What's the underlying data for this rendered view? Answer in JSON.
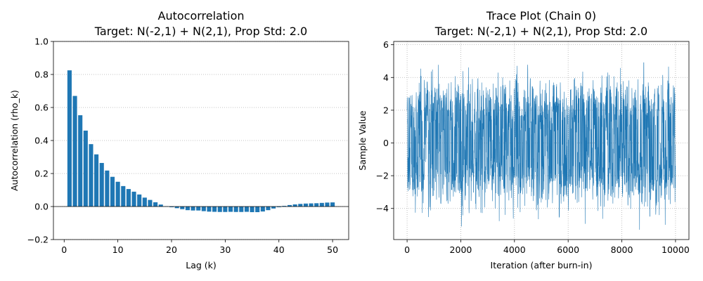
{
  "chart_data": [
    {
      "type": "bar",
      "title": "Autocorrelation",
      "subtitle": "Target: N(-2,1) + N(2,1), Prop Std: 2.0",
      "xlabel": "Lag (k)",
      "ylabel": "Autocorrelation (rho_k)",
      "xlim": [
        -2,
        53
      ],
      "ylim": [
        -0.2,
        1.0
      ],
      "xticks": [
        0,
        10,
        20,
        30,
        40,
        50
      ],
      "yticks": [
        -0.2,
        0.0,
        0.2,
        0.4,
        0.6,
        0.8,
        1.0
      ],
      "ytick_labels": [
        "−0.2",
        "0.0",
        "0.2",
        "0.4",
        "0.6",
        "0.8",
        "1.0"
      ],
      "grid": "y-dotted",
      "zero_line": true,
      "color": "#1f77b4",
      "x": [
        1,
        2,
        3,
        4,
        5,
        6,
        7,
        8,
        9,
        10,
        11,
        12,
        13,
        14,
        15,
        16,
        17,
        18,
        19,
        20,
        21,
        22,
        23,
        24,
        25,
        26,
        27,
        28,
        29,
        30,
        31,
        32,
        33,
        34,
        35,
        36,
        37,
        38,
        39,
        40,
        41,
        42,
        43,
        44,
        45,
        46,
        47,
        48,
        49,
        50
      ],
      "values": [
        0.825,
        0.67,
        0.553,
        0.46,
        0.378,
        0.316,
        0.264,
        0.218,
        0.18,
        0.15,
        0.124,
        0.106,
        0.09,
        0.073,
        0.054,
        0.04,
        0.026,
        0.012,
        0.002,
        -0.004,
        -0.01,
        -0.016,
        -0.022,
        -0.024,
        -0.024,
        -0.028,
        -0.031,
        -0.032,
        -0.033,
        -0.033,
        -0.032,
        -0.033,
        -0.033,
        -0.032,
        -0.034,
        -0.034,
        -0.03,
        -0.022,
        -0.012,
        -0.004,
        0.004,
        0.009,
        0.013,
        0.016,
        0.018,
        0.019,
        0.02,
        0.022,
        0.024,
        0.025
      ]
    },
    {
      "type": "line",
      "title": "Trace Plot (Chain 0)",
      "subtitle": "Target: N(-2,1) + N(2,1), Prop Std: 2.0",
      "xlabel": "Iteration (after burn-in)",
      "ylabel": "Sample Value",
      "xlim": [
        -500,
        10500
      ],
      "ylim": [
        -5.9,
        6.2
      ],
      "xticks": [
        0,
        2000,
        4000,
        6000,
        8000,
        10000
      ],
      "yticks": [
        -4,
        -2,
        0,
        2,
        4,
        6
      ],
      "ytick_labels": [
        "−4",
        "−2",
        "0",
        "2",
        "4",
        "6"
      ],
      "grid": "both-dotted",
      "color": "#1f77b4",
      "n_iterations": 10000,
      "mixture_modes": [
        -2,
        2
      ],
      "sample_range": [
        -5.3,
        5.8
      ]
    }
  ]
}
